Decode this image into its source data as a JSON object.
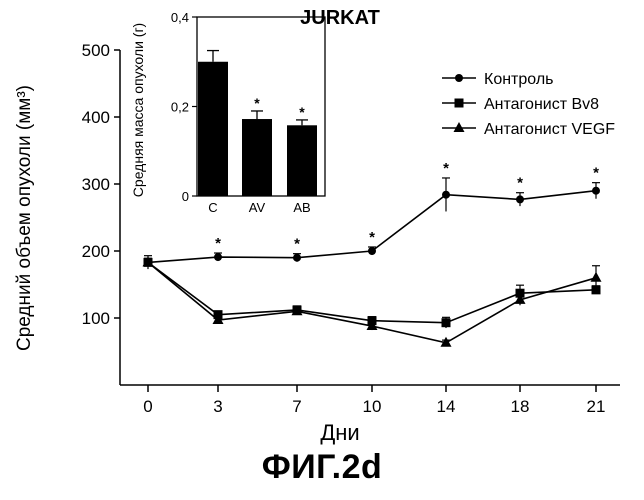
{
  "chart_data": [
    {
      "type": "line",
      "title": "JURKAT",
      "xlabel": "Дни",
      "ylabel": "Средний объем опухоли (мм³)",
      "x": [
        0,
        3,
        7,
        10,
        14,
        18,
        21
      ],
      "xticks": [
        "0",
        "3",
        "7",
        "10",
        "14",
        "18",
        "21"
      ],
      "ylim": [
        0,
        500
      ],
      "yticks": [
        "100",
        "200",
        "300",
        "400",
        "500"
      ],
      "grid": false,
      "legend_position": "top-right",
      "significance_mark": "*",
      "series": [
        {
          "name": "Контроль",
          "marker": "circle",
          "values": [
            183,
            191,
            190,
            200,
            284,
            277,
            290
          ],
          "errors": [
            10,
            6,
            6,
            6,
            25,
            10,
            12
          ],
          "significant": [
            false,
            true,
            true,
            true,
            true,
            true,
            true
          ]
        },
        {
          "name": "Антагонист Bv8",
          "marker": "square",
          "values": [
            183,
            105,
            112,
            96,
            93,
            137,
            142
          ],
          "errors": [
            6,
            4,
            6,
            6,
            8,
            12,
            6
          ]
        },
        {
          "name": "Антагонист VEGF",
          "marker": "triangle",
          "values": [
            183,
            97,
            110,
            88,
            63,
            127,
            160
          ],
          "errors": [
            6,
            4,
            4,
            6,
            4,
            8,
            18
          ]
        }
      ]
    },
    {
      "type": "bar",
      "categories": [
        "C",
        "AV",
        "AB"
      ],
      "values": [
        0.3,
        0.172,
        0.158
      ],
      "errors": [
        0.025,
        0.018,
        0.012
      ],
      "significant": [
        false,
        true,
        true
      ],
      "ylabel": "Средняя масса опухоли (г)",
      "ylim": [
        0,
        0.4
      ],
      "yticks": [
        "0",
        "0,2",
        "0,4"
      ],
      "significance_mark": "*"
    }
  ],
  "caption": "ФИГ.2d"
}
